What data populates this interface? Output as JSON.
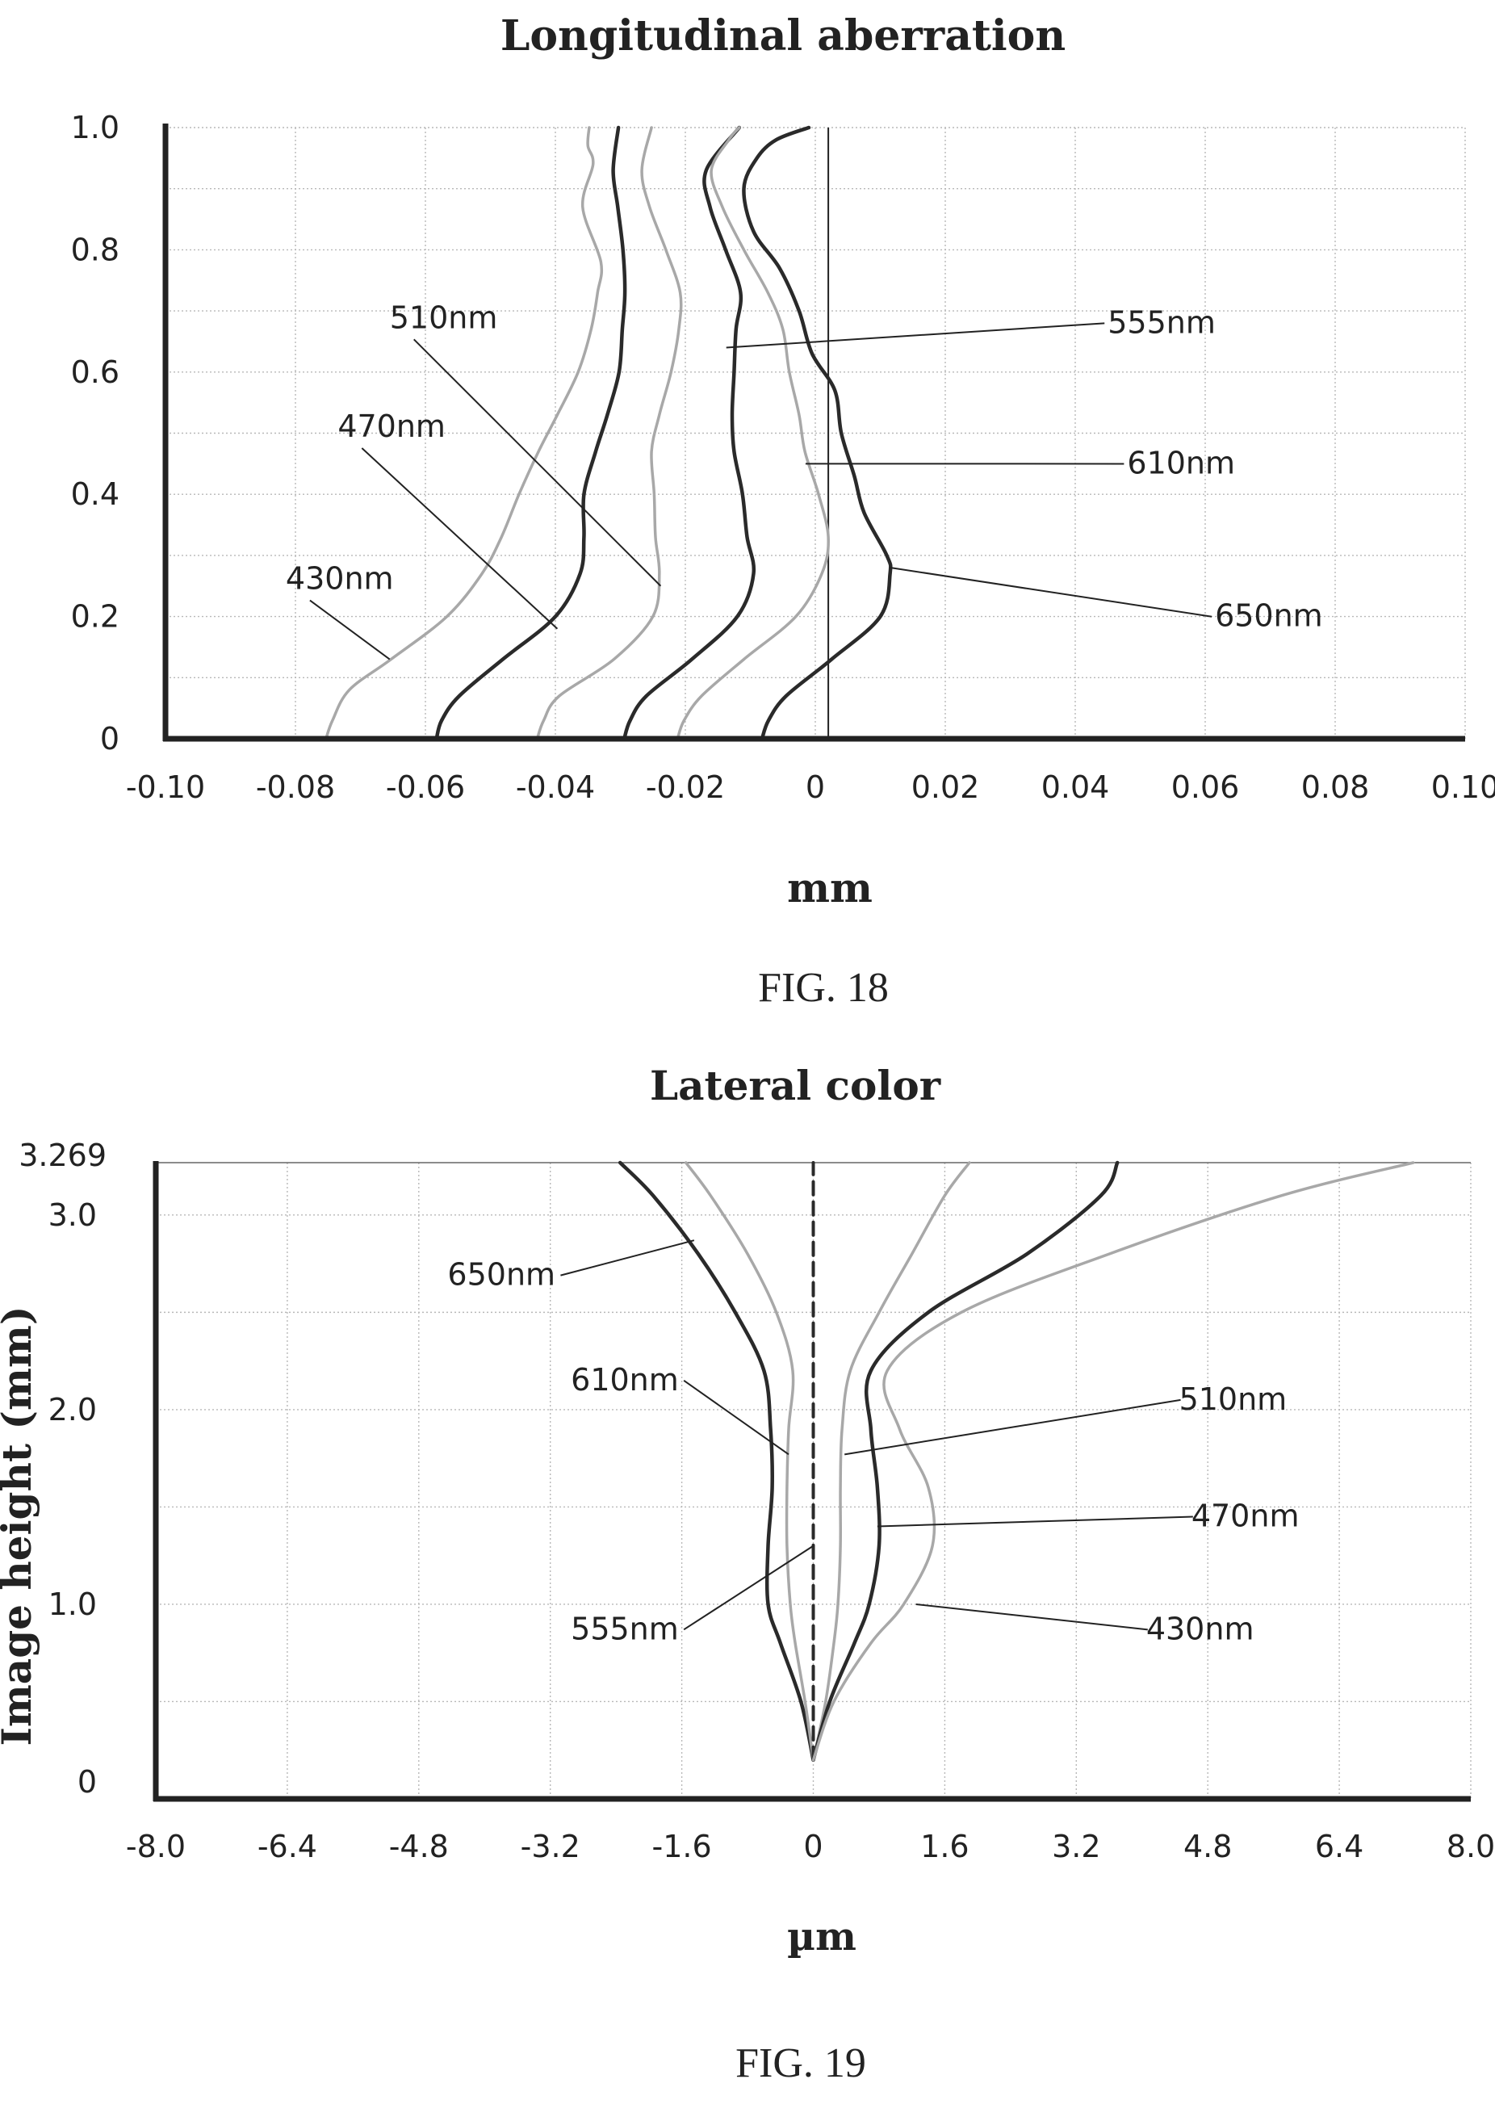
{
  "chart_data": [
    {
      "type": "line",
      "title": "Longitudinal aberration",
      "xlabel": "mm",
      "ylabel": "",
      "caption": "FIG. 18",
      "xlim": [
        -0.1,
        0.1
      ],
      "ylim": [
        0,
        1.0
      ],
      "x_ticks": [
        "-0.10",
        "-0.08",
        "-0.06",
        "-0.04",
        "-0.02",
        "0",
        "0.02",
        "0.04",
        "0.06",
        "0.08",
        "0.10"
      ],
      "y_ticks": [
        "0",
        "0.2",
        "0.4",
        "0.6",
        "0.8",
        "1.0"
      ],
      "grid": true,
      "series": [
        {
          "name": "430nm",
          "color": "#a8a8a8",
          "points": [
            [
              -0.0753,
              0
            ],
            [
              -0.0743,
              0.03
            ],
            [
              -0.0717,
              0.08
            ],
            [
              -0.0653,
              0.13
            ],
            [
              -0.0567,
              0.2
            ],
            [
              -0.0513,
              0.27
            ],
            [
              -0.0483,
              0.33
            ],
            [
              -0.0456,
              0.4
            ],
            [
              -0.0426,
              0.47
            ],
            [
              -0.0397,
              0.53
            ],
            [
              -0.0365,
              0.6
            ],
            [
              -0.0345,
              0.67
            ],
            [
              -0.0335,
              0.73
            ],
            [
              -0.033,
              0.78
            ],
            [
              -0.0358,
              0.87
            ],
            [
              -0.0342,
              0.94
            ],
            [
              -0.035,
              0.97
            ],
            [
              -0.0348,
              1.0
            ]
          ]
        },
        {
          "name": "470nm",
          "color": "#2a2a2a",
          "points": [
            [
              -0.0583,
              0
            ],
            [
              -0.0575,
              0.03
            ],
            [
              -0.0548,
              0.07
            ],
            [
              -0.0481,
              0.13
            ],
            [
              -0.04,
              0.2
            ],
            [
              -0.0362,
              0.27
            ],
            [
              -0.0356,
              0.33
            ],
            [
              -0.0356,
              0.4
            ],
            [
              -0.0338,
              0.47
            ],
            [
              -0.032,
              0.53
            ],
            [
              -0.0302,
              0.6
            ],
            [
              -0.0297,
              0.67
            ],
            [
              -0.0293,
              0.73
            ],
            [
              -0.0296,
              0.8
            ],
            [
              -0.0304,
              0.87
            ],
            [
              -0.0311,
              0.93
            ],
            [
              -0.0303,
              1.0
            ]
          ]
        },
        {
          "name": "510nm",
          "color": "#a8a8a8",
          "points": [
            [
              -0.0428,
              0
            ],
            [
              -0.0418,
              0.03
            ],
            [
              -0.0394,
              0.07
            ],
            [
              -0.031,
              0.13
            ],
            [
              -0.025,
              0.2
            ],
            [
              -0.024,
              0.27
            ],
            [
              -0.0246,
              0.33
            ],
            [
              -0.0248,
              0.4
            ],
            [
              -0.0252,
              0.47
            ],
            [
              -0.024,
              0.53
            ],
            [
              -0.0222,
              0.6
            ],
            [
              -0.021,
              0.67
            ],
            [
              -0.0208,
              0.73
            ],
            [
              -0.023,
              0.8
            ],
            [
              -0.0255,
              0.87
            ],
            [
              -0.0267,
              0.93
            ],
            [
              -0.0252,
              1.0
            ]
          ]
        },
        {
          "name": "555nm",
          "color": "#2a2a2a",
          "points": [
            [
              -0.0294,
              0
            ],
            [
              -0.0285,
              0.03
            ],
            [
              -0.026,
              0.07
            ],
            [
              -0.019,
              0.13
            ],
            [
              -0.012,
              0.2
            ],
            [
              -0.0095,
              0.27
            ],
            [
              -0.0105,
              0.33
            ],
            [
              -0.0112,
              0.4
            ],
            [
              -0.0125,
              0.47
            ],
            [
              -0.0128,
              0.53
            ],
            [
              -0.0125,
              0.6
            ],
            [
              -0.0122,
              0.67
            ],
            [
              -0.0115,
              0.73
            ],
            [
              -0.0138,
              0.8
            ],
            [
              -0.0162,
              0.87
            ],
            [
              -0.0168,
              0.93
            ],
            [
              -0.0117,
              1.0
            ]
          ]
        },
        {
          "name": "610nm",
          "color": "#a8a8a8",
          "points": [
            [
              -0.0212,
              0
            ],
            [
              -0.0202,
              0.03
            ],
            [
              -0.0175,
              0.07
            ],
            [
              -0.011,
              0.13
            ],
            [
              -0.003,
              0.2
            ],
            [
              0.001,
              0.27
            ],
            [
              0.002,
              0.33
            ],
            [
              0.0005,
              0.4
            ],
            [
              -0.0016,
              0.47
            ],
            [
              -0.0025,
              0.53
            ],
            [
              -0.004,
              0.6
            ],
            [
              -0.005,
              0.67
            ],
            [
              -0.0073,
              0.73
            ],
            [
              -0.011,
              0.8
            ],
            [
              -0.0143,
              0.87
            ],
            [
              -0.016,
              0.93
            ],
            [
              -0.0133,
              0.98
            ],
            [
              -0.0117,
              1.0
            ]
          ]
        },
        {
          "name": "650nm",
          "color": "#2a2a2a",
          "points": [
            [
              -0.0082,
              0
            ],
            [
              -0.0072,
              0.03
            ],
            [
              -0.0045,
              0.07
            ],
            [
              0.0025,
              0.13
            ],
            [
              0.01,
              0.2
            ],
            [
              0.0115,
              0.27
            ],
            [
              0.011,
              0.3
            ],
            [
              0.0075,
              0.37
            ],
            [
              0.006,
              0.43
            ],
            [
              0.004,
              0.5
            ],
            [
              0.003,
              0.57
            ],
            [
              -0.0005,
              0.63
            ],
            [
              -0.0025,
              0.7
            ],
            [
              -0.0055,
              0.77
            ],
            [
              -0.0095,
              0.83
            ],
            [
              -0.011,
              0.9
            ],
            [
              -0.009,
              0.95
            ],
            [
              -0.006,
              0.98
            ],
            [
              -0.001,
              1.0
            ]
          ]
        }
      ],
      "reference_line_x": 0.002,
      "annotations": [
        {
          "text": "555nm",
          "anchor": [
            -0.0137,
            0.64
          ],
          "label_pos": [
            0.045,
            0.664
          ],
          "color": "#222"
        },
        {
          "text": "610nm",
          "anchor": [
            -0.0015,
            0.45
          ],
          "label_pos": [
            0.048,
            0.434
          ],
          "color": "#222"
        },
        {
          "text": "650nm",
          "anchor": [
            0.0115,
            0.28
          ],
          "label_pos": [
            0.0615,
            0.184
          ],
          "color": "#222"
        },
        {
          "text": "510nm",
          "anchor": [
            -0.0238,
            0.25
          ],
          "label_pos": [
            -0.0655,
            0.672
          ],
          "color": "#222"
        },
        {
          "text": "470nm",
          "anchor": [
            -0.0397,
            0.18
          ],
          "label_pos": [
            -0.0735,
            0.494
          ],
          "color": "#222"
        },
        {
          "text": "430nm",
          "anchor": [
            -0.0655,
            0.13
          ],
          "label_pos": [
            -0.0815,
            0.245
          ],
          "color": "#222"
        }
      ]
    },
    {
      "type": "line",
      "title": "Lateral color",
      "xlabel": "µm",
      "ylabel": "Image height (mm)",
      "caption": "FIG. 19",
      "xlim": [
        -8.0,
        8.0
      ],
      "ylim": [
        0,
        3.269
      ],
      "x_ticks": [
        "-8.0",
        "-6.4",
        "-4.8",
        "-3.2",
        "-1.6",
        "0",
        "1.6",
        "3.2",
        "4.8",
        "6.4",
        "8.0"
      ],
      "y_tick_values": [
        0,
        1.0,
        2.0,
        3.0,
        3.269
      ],
      "y_ticks": [
        "0",
        "1.0",
        "2.0",
        "3.0",
        "3.269"
      ],
      "grid": true,
      "series": [
        {
          "name": "650nm",
          "color": "#2a2a2a",
          "points": [
            [
              0,
              0.2
            ],
            [
              -0.15,
              0.5
            ],
            [
              -0.4,
              0.8
            ],
            [
              -0.55,
              1.0
            ],
            [
              -0.55,
              1.3
            ],
            [
              -0.5,
              1.6
            ],
            [
              -0.52,
              1.9
            ],
            [
              -0.6,
              2.2
            ],
            [
              -0.95,
              2.5
            ],
            [
              -1.4,
              2.8
            ],
            [
              -1.95,
              3.1
            ],
            [
              -2.35,
              3.269
            ]
          ]
        },
        {
          "name": "610nm",
          "color": "#a8a8a8",
          "points": [
            [
              0,
              0.2
            ],
            [
              -0.1,
              0.5
            ],
            [
              -0.22,
              0.8
            ],
            [
              -0.28,
              1.0
            ],
            [
              -0.32,
              1.3
            ],
            [
              -0.32,
              1.6
            ],
            [
              -0.3,
              1.9
            ],
            [
              -0.25,
              2.2
            ],
            [
              -0.45,
              2.5
            ],
            [
              -0.8,
              2.8
            ],
            [
              -1.25,
              3.1
            ],
            [
              -1.55,
              3.269
            ]
          ]
        },
        {
          "name": "555nm",
          "color": "#2a2a2a",
          "dashed": true,
          "points": [
            [
              0,
              0.2
            ],
            [
              0,
              1.0
            ],
            [
              0,
              2.0
            ],
            [
              0,
              3.0
            ],
            [
              0,
              3.269
            ]
          ]
        },
        {
          "name": "510nm",
          "color": "#a8a8a8",
          "points": [
            [
              0,
              0.2
            ],
            [
              0.15,
              0.5
            ],
            [
              0.25,
              0.8
            ],
            [
              0.3,
              1.0
            ],
            [
              0.33,
              1.3
            ],
            [
              0.33,
              1.6
            ],
            [
              0.35,
              1.9
            ],
            [
              0.45,
              2.2
            ],
            [
              0.8,
              2.5
            ],
            [
              1.2,
              2.8
            ],
            [
              1.6,
              3.1
            ],
            [
              1.9,
              3.269
            ]
          ]
        },
        {
          "name": "470nm",
          "color": "#2a2a2a",
          "points": [
            [
              0,
              0.2
            ],
            [
              0.2,
              0.5
            ],
            [
              0.5,
              0.8
            ],
            [
              0.68,
              1.0
            ],
            [
              0.8,
              1.3
            ],
            [
              0.78,
              1.6
            ],
            [
              0.7,
              1.9
            ],
            [
              0.7,
              2.2
            ],
            [
              1.4,
              2.5
            ],
            [
              2.6,
              2.8
            ],
            [
              3.5,
              3.1
            ],
            [
              3.7,
              3.269
            ]
          ]
        },
        {
          "name": "430nm",
          "color": "#a8a8a8",
          "points": [
            [
              0,
              0.2
            ],
            [
              0.25,
              0.5
            ],
            [
              0.7,
              0.8
            ],
            [
              1.1,
              1.0
            ],
            [
              1.45,
              1.3
            ],
            [
              1.4,
              1.6
            ],
            [
              1.05,
              1.9
            ],
            [
              0.9,
              2.2
            ],
            [
              1.8,
              2.5
            ],
            [
              3.6,
              2.8
            ],
            [
              5.7,
              3.1
            ],
            [
              7.3,
              3.269
            ]
          ]
        }
      ],
      "annotations": [
        {
          "text": "650nm",
          "anchor": [
            -1.45,
            2.87
          ],
          "label_pos": [
            -4.45,
            2.64
          ],
          "color": "#222"
        },
        {
          "text": "610nm",
          "anchor": [
            -0.3,
            1.77
          ],
          "label_pos": [
            -2.95,
            2.1
          ],
          "color": "#222"
        },
        {
          "text": "510nm",
          "anchor": [
            0.38,
            1.77
          ],
          "label_pos": [
            4.45,
            2.0
          ],
          "color": "#222"
        },
        {
          "text": "470nm",
          "anchor": [
            0.78,
            1.4
          ],
          "label_pos": [
            4.6,
            1.4
          ],
          "color": "#222"
        },
        {
          "text": "430nm",
          "anchor": [
            1.25,
            1.0
          ],
          "label_pos": [
            4.05,
            0.82
          ],
          "color": "#222"
        },
        {
          "text": "555nm",
          "anchor": [
            0,
            1.3
          ],
          "label_pos": [
            -2.95,
            0.82
          ],
          "color": "#222"
        }
      ]
    }
  ]
}
